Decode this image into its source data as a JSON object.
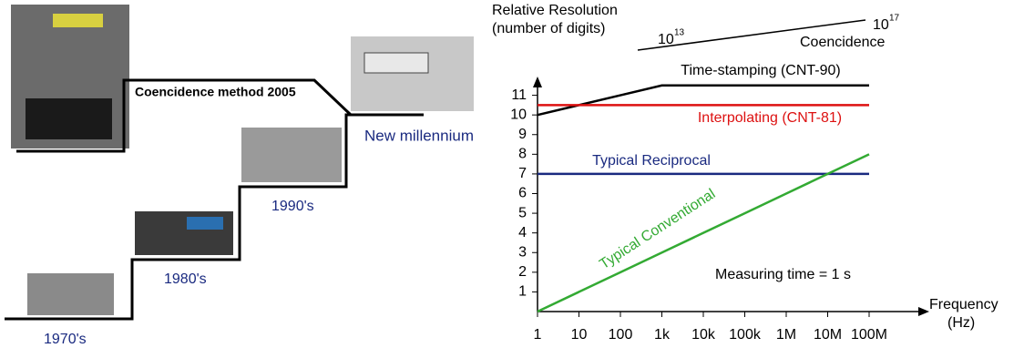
{
  "chart_data": {
    "type": "line",
    "y_label_lines": [
      "Relative Resolution",
      "(number of digits)"
    ],
    "x_label_lines": [
      "Frequency",
      "(Hz)"
    ],
    "categories": [
      "1",
      "10",
      "100",
      "1k",
      "10k",
      "100k",
      "1M",
      "10M",
      "100M"
    ],
    "series": [
      {
        "name": "Time-stamping (CNT-90)",
        "color": "#000000",
        "values": [
          10,
          10.5,
          11,
          11.5,
          11.5,
          11.5,
          11.5,
          11.5,
          11.5
        ]
      },
      {
        "name": "Interpolating (CNT-81)",
        "color": "#dd1111",
        "values": [
          10.5,
          10.5,
          10.5,
          10.5,
          10.5,
          10.5,
          10.5,
          10.5,
          10.5
        ]
      },
      {
        "name": "Typical Reciprocal",
        "color": "#1a2a80",
        "values": [
          7,
          7,
          7,
          7,
          7,
          7,
          7,
          7,
          7
        ]
      },
      {
        "name": "Typical Conventional",
        "color": "#33aa33",
        "values": [
          0,
          1,
          2,
          3,
          4,
          5,
          6,
          7,
          8
        ]
      }
    ],
    "ylim": [
      0,
      12
    ],
    "yticks": [
      1,
      2,
      3,
      4,
      5,
      6,
      7,
      8,
      9,
      10,
      11
    ],
    "grid": false,
    "annotations": {
      "measuring_time": "Measuring time = 1 s",
      "low_base": "10",
      "low_exp": "13",
      "high_base": "10",
      "high_exp": "17",
      "coincidence": "Coencidence"
    }
  },
  "timeline": {
    "coincidence_method": "Coencidence method 2005",
    "new_millennium": "New millennium",
    "y1990": "1990's",
    "y1980": "1980's",
    "y1970": "1970's"
  }
}
